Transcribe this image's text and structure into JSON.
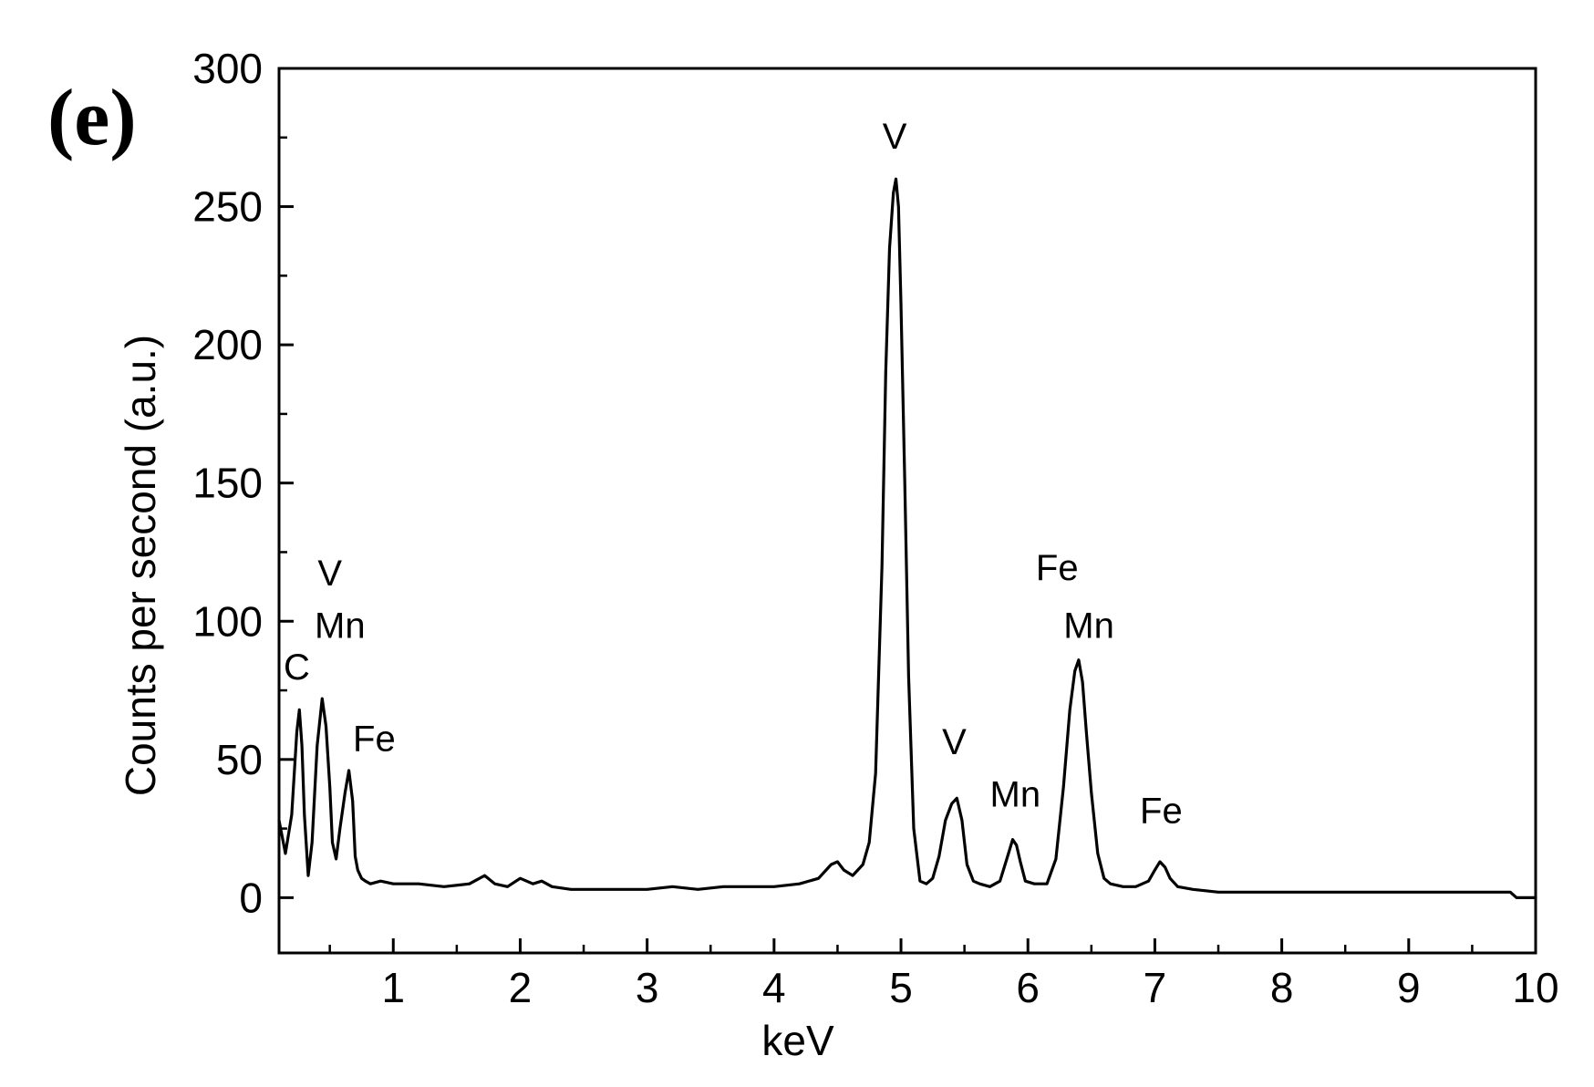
{
  "panel_label": "(e)",
  "chart_data": {
    "type": "line",
    "xlabel": "keV",
    "ylabel": "Counts per second (a.u.)",
    "xlim": [
      0.1,
      10
    ],
    "ylim": [
      -20,
      300
    ],
    "x_ticks": [
      1,
      2,
      3,
      4,
      5,
      6,
      7,
      8,
      9,
      10
    ],
    "y_ticks": [
      0,
      50,
      100,
      150,
      200,
      250,
      300
    ],
    "line_color": "#000000",
    "grid": false,
    "series": [
      {
        "x": [
          0.1,
          0.15,
          0.2,
          0.24,
          0.26,
          0.28,
          0.3,
          0.33,
          0.36,
          0.4,
          0.44,
          0.47,
          0.5,
          0.52,
          0.55,
          0.58,
          0.62,
          0.65,
          0.68,
          0.7,
          0.72,
          0.75,
          0.78,
          0.82,
          0.9,
          1.0,
          1.2,
          1.4,
          1.6,
          1.72,
          1.8,
          1.9,
          2.0,
          2.1,
          2.17,
          2.25,
          2.4,
          2.6,
          2.8,
          3.0,
          3.2,
          3.4,
          3.6,
          3.8,
          4.0,
          4.2,
          4.35,
          4.45,
          4.5,
          4.55,
          4.62,
          4.7,
          4.75,
          4.8,
          4.85,
          4.88,
          4.91,
          4.94,
          4.96,
          4.98,
          5.0,
          5.03,
          5.06,
          5.1,
          5.15,
          5.2,
          5.25,
          5.3,
          5.35,
          5.4,
          5.44,
          5.48,
          5.52,
          5.57,
          5.62,
          5.7,
          5.78,
          5.84,
          5.88,
          5.91,
          5.94,
          5.98,
          6.05,
          6.15,
          6.22,
          6.28,
          6.33,
          6.37,
          6.4,
          6.43,
          6.46,
          6.5,
          6.55,
          6.6,
          6.65,
          6.75,
          6.85,
          6.95,
          7.0,
          7.04,
          7.08,
          7.12,
          7.18,
          7.3,
          7.5,
          8.0,
          8.5,
          9.0,
          9.5,
          9.8,
          9.85,
          10.0
        ],
        "y": [
          28,
          16,
          30,
          60,
          68,
          55,
          30,
          8,
          20,
          55,
          72,
          62,
          40,
          20,
          14,
          25,
          38,
          46,
          35,
          15,
          10,
          7,
          6,
          5,
          6,
          5,
          5,
          4,
          5,
          8,
          5,
          4,
          7,
          5,
          6,
          4,
          3,
          3,
          3,
          3,
          4,
          3,
          4,
          4,
          4,
          5,
          7,
          12,
          13,
          10,
          8,
          12,
          20,
          45,
          120,
          190,
          235,
          255,
          260,
          250,
          215,
          150,
          80,
          25,
          6,
          5,
          7,
          15,
          28,
          34,
          36,
          28,
          12,
          6,
          5,
          4,
          6,
          15,
          21,
          19,
          13,
          6,
          5,
          5,
          14,
          40,
          68,
          82,
          86,
          78,
          60,
          38,
          16,
          7,
          5,
          4,
          4,
          6,
          10,
          13,
          11,
          7,
          4,
          3,
          2,
          2,
          2,
          2,
          2,
          2,
          0,
          0
        ]
      }
    ],
    "annotations": [
      {
        "text": "C",
        "x": 0.24,
        "y": 79
      },
      {
        "text": "V",
        "x": 0.5,
        "y": 113
      },
      {
        "text": "Mn",
        "x": 0.58,
        "y": 94
      },
      {
        "text": "Fe",
        "x": 0.85,
        "y": 53
      },
      {
        "text": "V",
        "x": 4.95,
        "y": 271
      },
      {
        "text": "V",
        "x": 5.42,
        "y": 52
      },
      {
        "text": "Mn",
        "x": 5.9,
        "y": 33
      },
      {
        "text": "Fe",
        "x": 6.23,
        "y": 115
      },
      {
        "text": "Mn",
        "x": 6.48,
        "y": 94
      },
      {
        "text": "Fe",
        "x": 7.05,
        "y": 27
      }
    ]
  }
}
